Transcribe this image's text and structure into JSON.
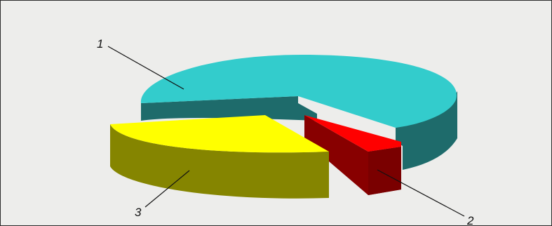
{
  "chart_data": {
    "type": "pie",
    "style": "3d-exploded",
    "slices": [
      {
        "label": "1",
        "value": 65,
        "color": "#33cccc",
        "side_color": "#1e6b6b"
      },
      {
        "label": "2",
        "value": 7,
        "color": "#ff0000",
        "side_color": "#880000"
      },
      {
        "label": "3",
        "value": 28,
        "color": "#ffff00",
        "side_color": "#858500"
      }
    ],
    "legend": "none",
    "title": ""
  },
  "labels": {
    "slice1": "1",
    "slice2": "2",
    "slice3": "3"
  }
}
